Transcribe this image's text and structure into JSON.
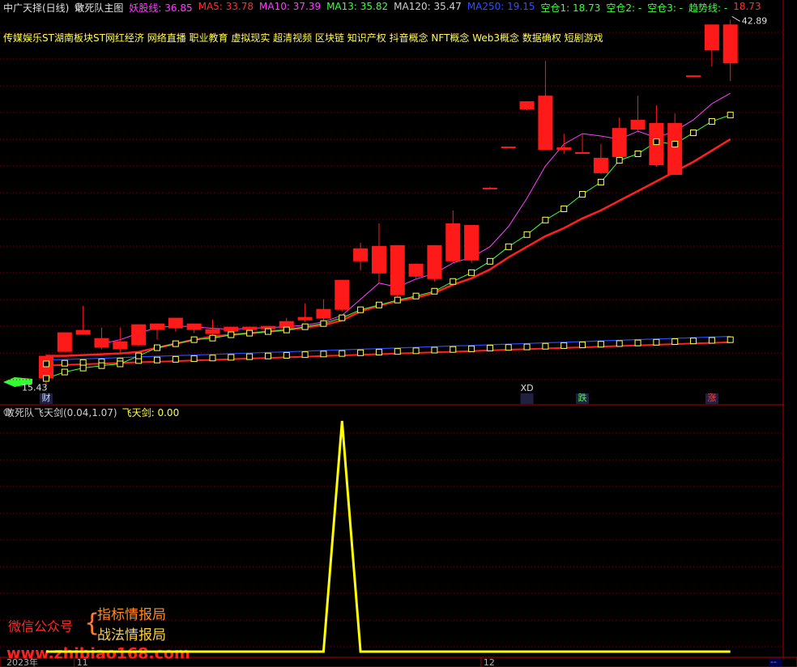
{
  "header": {
    "items": [
      {
        "text": "中广天择(日线)",
        "color": "#e0e0e0"
      },
      {
        "text": "敢死队主图",
        "color": "#e0e0e0"
      },
      {
        "text": "妖股线: 36.85",
        "color": "#ff40ff"
      },
      {
        "text": "MA5: 33.78",
        "color": "#ff3030"
      },
      {
        "text": "MA10: 37.39",
        "color": "#ff40ff"
      },
      {
        "text": "MA13: 35.82",
        "color": "#40ff40"
      },
      {
        "text": "MA120: 35.47",
        "color": "#d0d0d0"
      },
      {
        "text": "MA250: 19.15",
        "color": "#3050ff"
      },
      {
        "text": "空仓1: 18.73",
        "color": "#40ff40"
      },
      {
        "text": "空仓2: -",
        "color": "#40ff40"
      },
      {
        "text": "空仓3: -",
        "color": "#40ff40"
      },
      {
        "text": "趋势线: -",
        "color": "#40ff40"
      },
      {
        "text": "18.73",
        "color": "#ff3030"
      }
    ]
  },
  "concepts": "传媒娱乐ST湖南板块ST网红经济 网络直播 职业教育 虚拟现实 超清视频 区块链 知识产权 抖音概念 NFT概念 Web3概念 数据确权 短剧游戏",
  "sub_header": {
    "items": [
      {
        "text": "敢死队飞天剑(0.04,1.07)",
        "color": "#d0d0d0"
      },
      {
        "text": "飞天剑: 0.00",
        "color": "#ffff40"
      }
    ]
  },
  "watermark": {
    "account": "微信公众号",
    "name1": "指标情报局",
    "name2": "战法情报局",
    "url": "www.zhibiao168.com"
  },
  "year_label": "2023年",
  "corner_label": "--",
  "chart_data": [
    {
      "type": "candlestick",
      "color": "#ff1a1a",
      "ylim": [
        14,
        44
      ],
      "categories": [
        null,
        null,
        "11",
        null,
        null,
        null,
        null,
        null,
        null,
        null,
        null,
        null,
        null,
        null,
        null,
        null,
        null,
        null,
        null,
        null,
        null,
        null,
        null,
        null,
        "12",
        null,
        null,
        null,
        null,
        null,
        null,
        null,
        null,
        null,
        null,
        null,
        null,
        null
      ],
      "open": [
        17.72,
        19.48,
        19.3,
        19.05,
        18.81,
        18.51,
        19.66,
        19.78,
        19.66,
        19.36,
        19.54,
        19.66,
        19.72,
        19.78,
        20.38,
        20.51,
        21.17,
        24.8,
        23.89,
        26.01,
        23.65,
        23.47,
        24.8,
        27.52,
        30.19,
        33.39,
        36.17,
        37.2,
        33.15,
        32.91,
        32.55,
        32.61,
        34.66,
        35.15,
        35.15,
        38.59,
        40.59,
        42.53
      ],
      "high": [
        17.84,
        19.48,
        21.47,
        19.84,
        19.84,
        20.08,
        20.14,
        20.57,
        20.14,
        20.44,
        19.9,
        19.9,
        19.96,
        20.57,
        21.65,
        21.96,
        23.41,
        26.19,
        27.64,
        26.01,
        24.62,
        26.01,
        28.61,
        27.52,
        30.37,
        33.39,
        36.78,
        39.8,
        34.36,
        34.36,
        33.57,
        35.57,
        37.2,
        36.48,
        35.87,
        38.72,
        42.53,
        42.89
      ],
      "low": [
        15.43,
        18.02,
        19.3,
        18.21,
        17.96,
        18.45,
        18.93,
        19.54,
        19.42,
        19.05,
        19.42,
        19.54,
        19.54,
        19.72,
        20.26,
        20.38,
        21.05,
        24.13,
        23.17,
        22.08,
        23.41,
        23.29,
        24.68,
        24.68,
        30.19,
        33.39,
        36.11,
        33.15,
        32.85,
        32.85,
        31.33,
        32.36,
        34.54,
        31.88,
        31.27,
        38.59,
        39.38,
        38.29
      ],
      "close": [
        16.03,
        18.02,
        19.66,
        18.33,
        18.21,
        20.08,
        20.14,
        20.57,
        20.14,
        19.72,
        19.9,
        19.9,
        19.96,
        20.32,
        20.63,
        21.23,
        23.41,
        25.77,
        25.95,
        22.26,
        24.62,
        26.01,
        27.64,
        24.86,
        30.31,
        33.39,
        36.78,
        33.15,
        33.33,
        32.97,
        31.4,
        34.78,
        35.39,
        32.0,
        31.27,
        38.72,
        42.53,
        39.62
      ],
      "series": [
        {
          "color": "#2a4cff",
          "width": 1.2,
          "values": [
            17.4,
            17.45,
            17.5,
            17.54,
            17.59,
            17.64,
            17.69,
            17.74,
            17.78,
            17.83,
            17.88,
            17.93,
            17.98,
            18.02,
            18.07,
            18.12,
            18.17,
            18.22,
            18.26,
            18.31,
            18.36,
            18.41,
            18.46,
            18.5,
            18.55,
            18.6,
            18.65,
            18.7,
            18.74,
            18.79,
            18.84,
            18.89,
            18.94,
            18.98,
            19.03,
            19.08,
            19.13,
            19.18
          ]
        },
        {
          "color": "#ff2020",
          "width": 2,
          "values": [
            17.0,
            17.05,
            17.09,
            17.14,
            17.19,
            17.24,
            17.28,
            17.33,
            17.38,
            17.42,
            17.47,
            17.52,
            17.56,
            17.61,
            17.66,
            17.71,
            17.75,
            17.8,
            17.85,
            17.89,
            17.94,
            17.99,
            18.03,
            18.08,
            18.13,
            18.18,
            18.22,
            18.27,
            18.32,
            18.36,
            18.41,
            18.46,
            18.5,
            18.55,
            18.6,
            18.65,
            18.69,
            18.74
          ]
        },
        {
          "color": "#ffff55",
          "marker": "square",
          "line": false,
          "values": [
            17.12,
            17.17,
            17.22,
            17.27,
            17.32,
            17.37,
            17.41,
            17.46,
            17.51,
            17.56,
            17.61,
            17.66,
            17.71,
            17.76,
            17.81,
            17.86,
            17.9,
            17.95,
            18.0,
            18.05,
            18.1,
            18.15,
            18.2,
            18.25,
            18.3,
            18.35,
            18.39,
            18.44,
            18.49,
            18.54,
            18.59,
            18.64,
            18.69,
            18.74,
            18.79,
            18.84,
            18.88,
            18.93
          ]
        },
        {
          "color": "#ff2020",
          "width": 2.5,
          "values": [
            17.72,
            17.72,
            17.78,
            17.84,
            17.9,
            18.02,
            18.33,
            18.63,
            18.93,
            19.17,
            19.3,
            19.42,
            19.54,
            19.66,
            19.84,
            20.02,
            20.38,
            21.05,
            21.47,
            21.83,
            22.08,
            22.44,
            23.05,
            23.53,
            24.19,
            25.1,
            25.89,
            26.68,
            27.28,
            28.01,
            28.61,
            29.34,
            30.06,
            30.79,
            31.52,
            32.24,
            33.09,
            33.94
          ]
        },
        {
          "color": "#40ff40",
          "width": 1,
          "marker": "square",
          "marker_color": "#ffff55",
          "values": [
            16.03,
            16.51,
            16.81,
            16.99,
            17.12,
            17.72,
            18.33,
            18.63,
            18.93,
            19.05,
            19.3,
            19.42,
            19.54,
            19.66,
            19.9,
            20.14,
            20.57,
            21.17,
            21.53,
            21.9,
            22.2,
            22.56,
            23.29,
            23.95,
            24.8,
            25.89,
            26.8,
            27.89,
            28.73,
            29.82,
            30.73,
            32.36,
            32.85,
            33.75,
            33.57,
            34.42,
            35.27,
            35.75
          ]
        },
        {
          "color": "#ff40ff",
          "width": 1,
          "values": [
            null,
            null,
            null,
            18.63,
            18.93,
            19.42,
            19.84,
            19.96,
            19.9,
            19.78,
            19.72,
            19.78,
            19.84,
            19.9,
            20.02,
            20.26,
            20.75,
            21.96,
            23.17,
            22.87,
            23.47,
            23.89,
            24.68,
            25.1,
            25.89,
            27.4,
            29.52,
            31.94,
            33.57,
            34.36,
            34.18,
            33.94,
            34.54,
            34.06,
            34.54,
            35.39,
            36.6,
            37.38
          ]
        }
      ],
      "event_labels": [
        {
          "label": "财",
          "color": "#c8d8ff"
        },
        null,
        null,
        null,
        null,
        null,
        null,
        null,
        null,
        null,
        null,
        null,
        null,
        null,
        null,
        null,
        null,
        null,
        null,
        null,
        null,
        null,
        null,
        null,
        null,
        null,
        {
          "label": "XD",
          "color": "#e0e0e0"
        },
        null,
        null,
        {
          "label": "跌",
          "color": "#40ff40"
        },
        null,
        null,
        null,
        null,
        null,
        null,
        {
          "label": "涨",
          "color": "#ff4040"
        },
        null
      ]
    },
    {
      "type": "line",
      "color": "#ffff00",
      "ylim": [
        0,
        1
      ],
      "values": [
        0,
        0,
        0,
        0,
        0,
        0,
        0,
        0,
        0,
        0,
        0,
        0,
        0,
        0,
        0,
        0,
        1,
        0,
        0,
        0,
        0,
        0,
        0,
        0,
        0,
        0,
        0,
        0,
        0,
        0,
        0,
        0,
        0,
        0,
        0,
        0,
        0,
        0
      ]
    }
  ]
}
